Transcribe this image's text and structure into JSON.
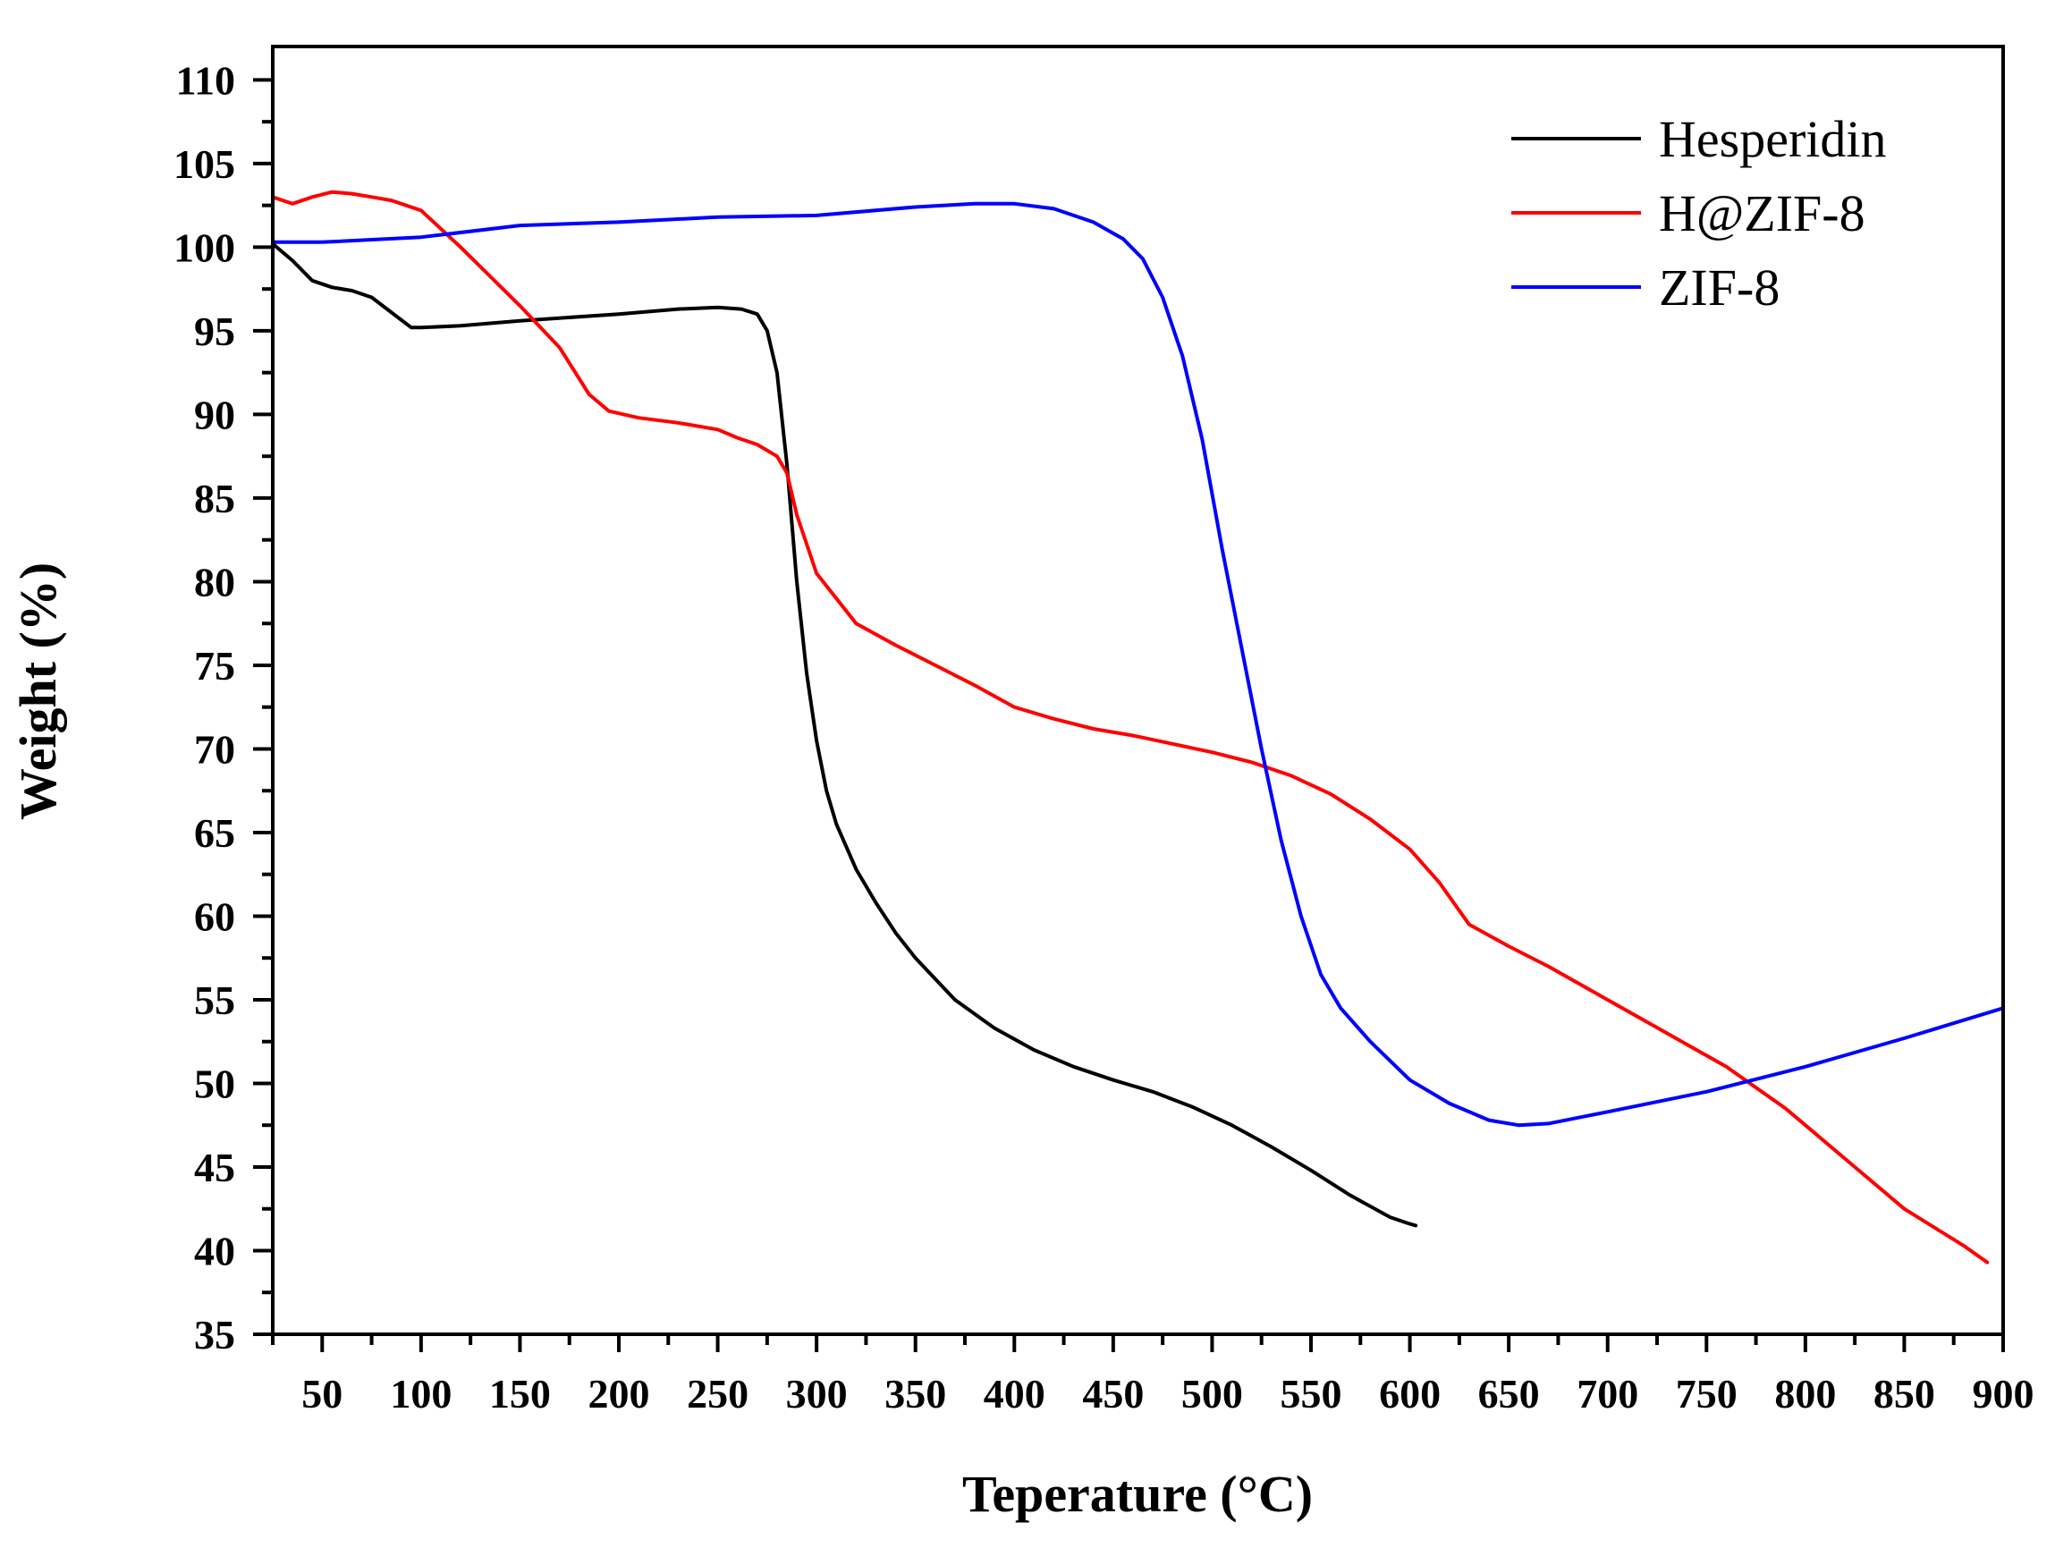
{
  "chart_data": {
    "type": "line",
    "title": "",
    "xlabel": "Teperature (°C)",
    "ylabel": "Weight (%)",
    "xlim": [
      25,
      900
    ],
    "ylim": [
      35,
      112
    ],
    "x_ticks": [
      50,
      100,
      150,
      200,
      250,
      300,
      350,
      400,
      450,
      500,
      550,
      600,
      650,
      700,
      750,
      800,
      850,
      900
    ],
    "y_ticks": [
      35,
      40,
      45,
      50,
      55,
      60,
      65,
      70,
      75,
      80,
      85,
      90,
      95,
      100,
      105,
      110
    ],
    "grid": false,
    "legend_position": "top-right",
    "series": [
      {
        "name": "Hesperidin",
        "color": "#000000",
        "x": [
          25,
          35,
          45,
          55,
          65,
          75,
          85,
          95,
          100,
          120,
          150,
          200,
          230,
          250,
          262,
          270,
          275,
          280,
          285,
          290,
          295,
          300,
          305,
          310,
          320,
          330,
          340,
          350,
          370,
          390,
          410,
          430,
          450,
          470,
          490,
          510,
          530,
          550,
          570,
          590,
          600,
          603
        ],
        "y": [
          100.2,
          99.2,
          98.0,
          97.6,
          97.4,
          97.0,
          96.1,
          95.2,
          95.2,
          95.3,
          95.6,
          96.0,
          96.3,
          96.4,
          96.3,
          96.0,
          95.0,
          92.5,
          87.0,
          80.0,
          74.5,
          70.5,
          67.5,
          65.5,
          62.8,
          60.8,
          59.0,
          57.5,
          55.0,
          53.3,
          52.0,
          51.0,
          50.2,
          49.5,
          48.6,
          47.5,
          46.2,
          44.8,
          43.3,
          42.0,
          41.6,
          41.5
        ]
      },
      {
        "name": "H@ZIF-8",
        "color": "#ff0000",
        "x": [
          25,
          30,
          35,
          45,
          55,
          65,
          75,
          85,
          100,
          120,
          150,
          170,
          185,
          195,
          210,
          230,
          250,
          260,
          270,
          280,
          285,
          290,
          300,
          320,
          340,
          360,
          380,
          400,
          420,
          440,
          460,
          480,
          500,
          520,
          540,
          560,
          580,
          600,
          615,
          630,
          650,
          670,
          700,
          730,
          760,
          790,
          820,
          850,
          880,
          892
        ],
        "y": [
          103.0,
          102.8,
          102.6,
          103.0,
          103.3,
          103.2,
          103.0,
          102.8,
          102.2,
          100.0,
          96.5,
          94.0,
          91.2,
          90.2,
          89.8,
          89.5,
          89.1,
          88.6,
          88.2,
          87.5,
          86.5,
          84.0,
          80.5,
          77.5,
          76.2,
          75.0,
          73.8,
          72.5,
          71.8,
          71.2,
          70.8,
          70.3,
          69.8,
          69.2,
          68.4,
          67.3,
          65.8,
          64.0,
          62.0,
          59.5,
          58.2,
          57.0,
          55.0,
          53.0,
          51.0,
          48.5,
          45.5,
          42.5,
          40.3,
          39.3
        ]
      },
      {
        "name": "ZIF-8",
        "color": "#0000ff",
        "x": [
          25,
          50,
          100,
          150,
          200,
          250,
          300,
          350,
          380,
          400,
          420,
          440,
          455,
          465,
          475,
          485,
          495,
          505,
          515,
          525,
          535,
          545,
          555,
          565,
          580,
          600,
          620,
          640,
          655,
          670,
          700,
          750,
          800,
          850,
          900
        ],
        "y": [
          100.3,
          100.3,
          100.6,
          101.3,
          101.5,
          101.8,
          101.9,
          102.4,
          102.6,
          102.6,
          102.3,
          101.5,
          100.5,
          99.3,
          97.0,
          93.5,
          88.5,
          82.0,
          76.0,
          70.0,
          64.5,
          60.0,
          56.5,
          54.5,
          52.5,
          50.2,
          48.8,
          47.8,
          47.5,
          47.6,
          48.3,
          49.5,
          51.0,
          52.7,
          54.5
        ]
      }
    ]
  }
}
